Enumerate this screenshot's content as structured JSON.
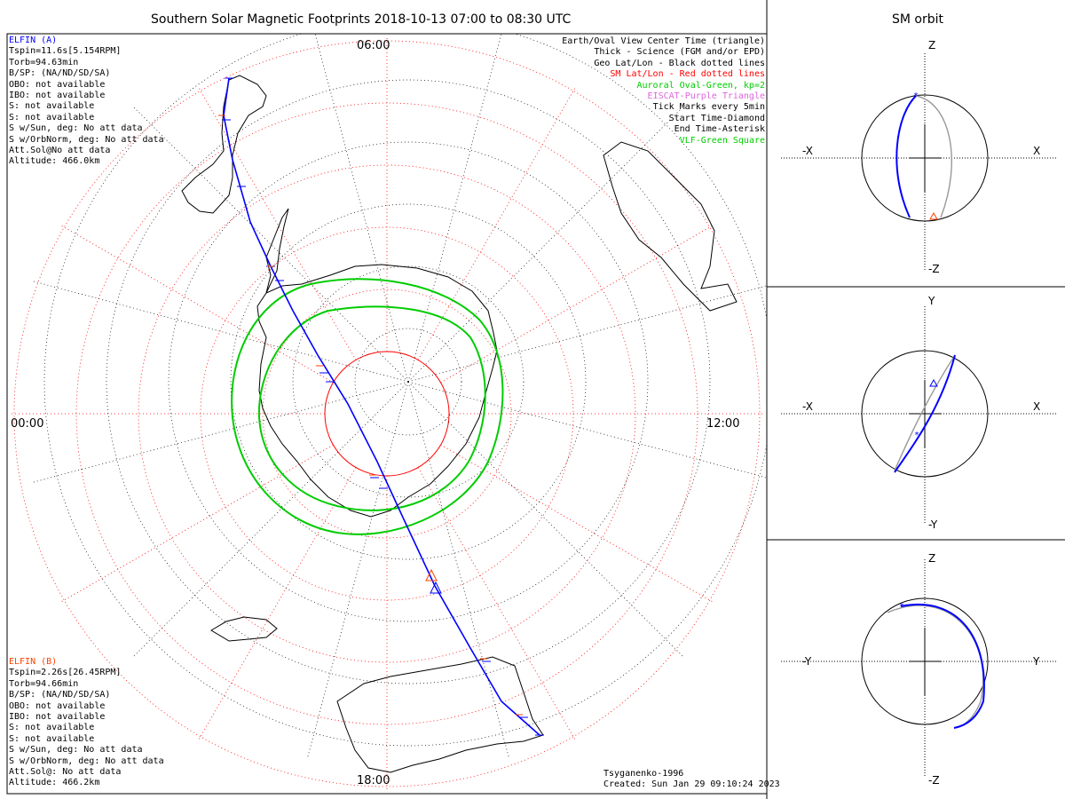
{
  "title": "Southern Solar Magnetic Footprints 2018-10-13 07:00 to 08:30 UTC",
  "orbit_title": "SM orbit",
  "clock_labels": {
    "top": "06:00",
    "left": "00:00",
    "right": "12:00",
    "bottom": "18:00"
  },
  "elfin_a": {
    "name": "ELFIN (A)",
    "name_color": "#0000ff",
    "lines": [
      "Tspin=11.6s[5.154RPM]",
      "Torb=94.63min",
      "B/SP: (NA/ND/SD/SA)",
      "OBO: not available",
      "IBO: not available",
      "S: not available",
      "S: not available",
      "S w/Sun, deg: No att data",
      "S w/OrbNorm, deg: No att data",
      "Att.Sol@No att data",
      "Altitude: 466.0km"
    ]
  },
  "elfin_b": {
    "name": "ELFIN (B)",
    "name_color": "#ff4000",
    "lines": [
      "Tspin=2.26s[26.45RPM]",
      "Torb=94.66min",
      "B/SP: (NA/ND/SD/SA)",
      "OBO: not available",
      "IBO: not available",
      "S: not available",
      "S: not available",
      "S w/Sun, deg: No att data",
      "S w/OrbNorm, deg: No att data",
      "Att.Sol@: No att data",
      "Altitude: 466.2km"
    ]
  },
  "legend": [
    {
      "text": "Earth/Oval View Center Time (triangle)",
      "color": "#000000"
    },
    {
      "text": "Thick - Science (FGM and/or EPD)",
      "color": "#000000"
    },
    {
      "text": "Geo Lat/Lon - Black dotted lines",
      "color": "#000000"
    },
    {
      "text": "SM Lat/Lon - Red dotted lines",
      "color": "#ff0000"
    },
    {
      "text": "Auroral Oval-Green, kp=2",
      "color": "#00cc00"
    },
    {
      "text": "EISCAT-Purple Triangle",
      "color": "#dd66dd"
    },
    {
      "text": "Tick Marks every 5min",
      "color": "#000000"
    },
    {
      "text": "Start Time-Diamond",
      "color": "#000000"
    },
    {
      "text": "End Time-Asterisk",
      "color": "#000000"
    },
    {
      "text": "VLF-Green Square",
      "color": "#00cc00"
    }
  ],
  "footer": {
    "model": "Tsyganenko-1996",
    "created": "Created: Sun Jan 29 09:10:24 2023"
  },
  "orbit_panels": [
    {
      "h_neg": "-X",
      "h_pos": "X",
      "v_pos": "Z",
      "v_neg": "-Z"
    },
    {
      "h_neg": "-X",
      "h_pos": "X",
      "v_pos": "Y",
      "v_neg": "-Y"
    },
    {
      "h_neg": "-Y",
      "h_pos": "Y",
      "v_pos": "Z",
      "v_neg": "-Z"
    }
  ],
  "colors": {
    "elfin_a_track": "#0000ff",
    "elfin_b_track": "#ff4000",
    "sm_grid": "#ff0000",
    "geo_grid": "#000000",
    "auroral_oval": "#00cc00",
    "orbit_b_track": "#999999"
  },
  "chart_data": {
    "type": "polar-map",
    "hemisphere": "south",
    "clock_labels": [
      "06:00",
      "00:00",
      "12:00",
      "18:00"
    ],
    "auroral_oval_kp": 2,
    "tick_interval_min": 5,
    "series": [
      {
        "name": "ELFIN (A)",
        "color": "#0000ff"
      },
      {
        "name": "ELFIN (B)",
        "color": "#ff4000"
      }
    ]
  }
}
